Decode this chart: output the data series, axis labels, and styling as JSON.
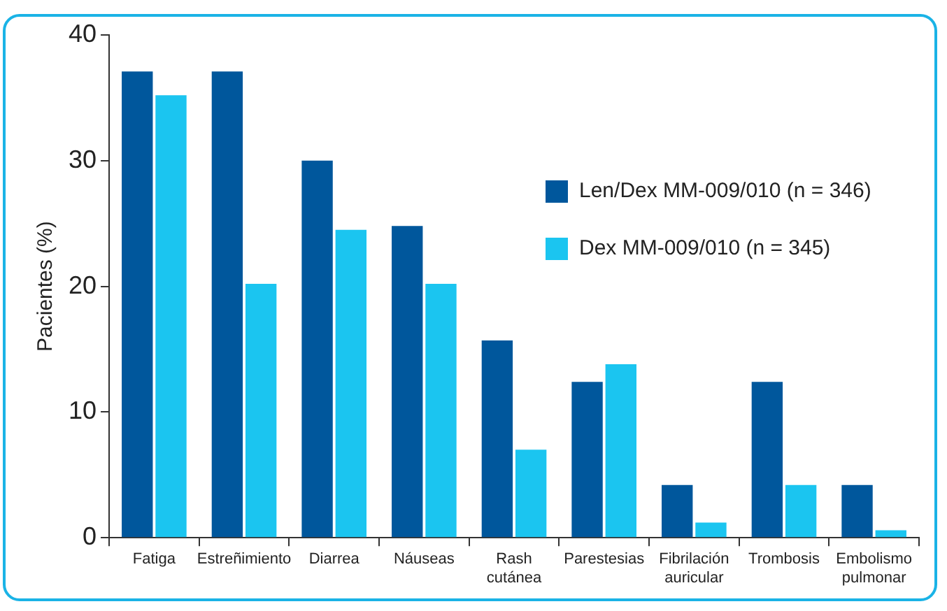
{
  "chart_data": {
    "type": "bar",
    "ylabel": "Pacientes (%)",
    "categories": [
      "Fatiga",
      "Estreñimiento",
      "Diarrea",
      "Náuseas",
      "Rash cutánea",
      "Parestesias",
      "Fibrilación auricular",
      "Trombosis",
      "Embolismo pulmonar"
    ],
    "series": [
      {
        "name": "Len/Dex MM-009/010 (n = 346)",
        "color": "#00579c",
        "values": [
          37.1,
          37.1,
          30,
          24.8,
          15.7,
          12.4,
          4.2,
          12.4,
          4.2
        ]
      },
      {
        "name": "Dex MM-009/010 (n = 345)",
        "color": "#1bc5f0",
        "values": [
          35.2,
          20.2,
          24.5,
          20.2,
          7,
          13.8,
          1.2,
          4.2,
          0.6
        ]
      }
    ],
    "ylim": [
      0,
      40
    ],
    "yticks": [
      0,
      10,
      20,
      30,
      40
    ],
    "grid": false,
    "legend": "top right"
  }
}
